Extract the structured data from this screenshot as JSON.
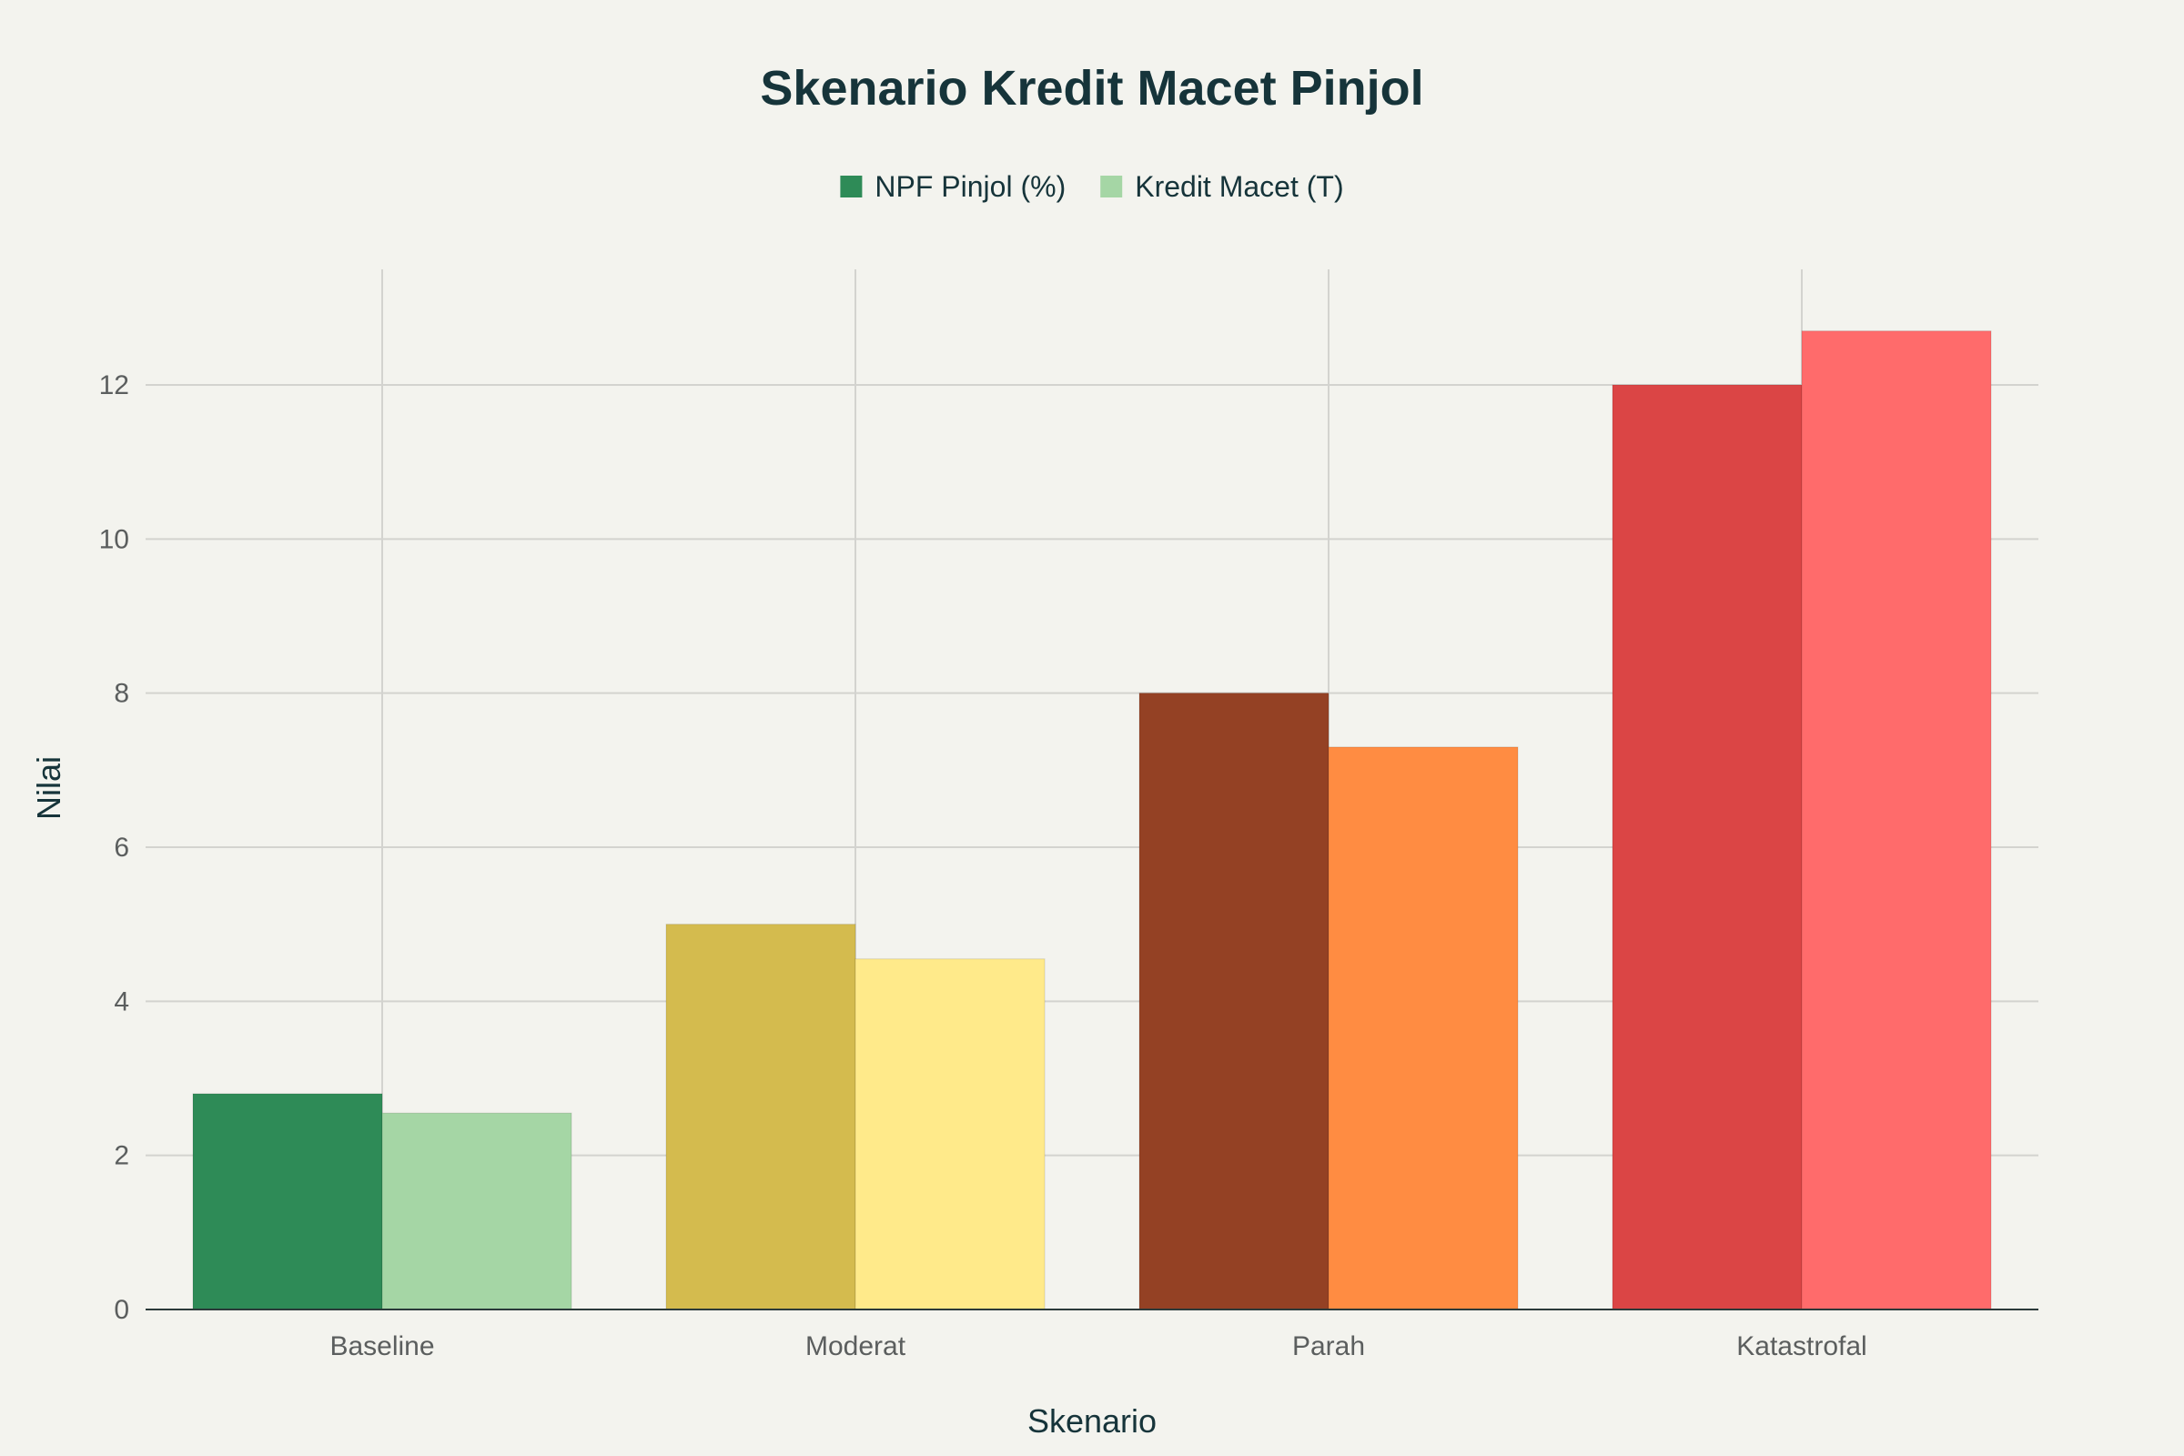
{
  "chart_data": {
    "type": "bar",
    "title": "Skenario Kredit Macet Pinjol",
    "xlabel": "Skenario",
    "ylabel": "Nilai",
    "categories": [
      "Baseline",
      "Moderat",
      "Parah",
      "Katastrofal"
    ],
    "series": [
      {
        "name": "NPF Pinjol (%)",
        "values": [
          2.8,
          5.0,
          8.0,
          12.0
        ],
        "colors": [
          "#2e8b57",
          "#d4bb4e",
          "#944124",
          "#db4545"
        ],
        "legend_color": "#2e8b57"
      },
      {
        "name": "Kredit Macet (T)",
        "values": [
          2.55,
          4.55,
          7.3,
          12.7
        ],
        "colors": [
          "#a5d6a5",
          "#ffea8a",
          "#ff8c42",
          "#ff6b6b"
        ],
        "legend_color": "#a5d6a5"
      }
    ],
    "ylim": [
      0,
      13.5
    ],
    "yticks": [
      "0",
      "2",
      "4",
      "6",
      "8",
      "10",
      "12"
    ],
    "grid": true,
    "legend_position": "top-center"
  }
}
